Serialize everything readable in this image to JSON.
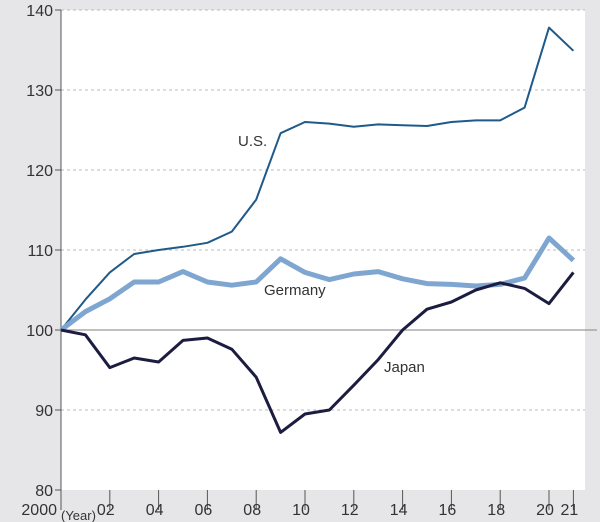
{
  "chart_data": {
    "type": "line",
    "x": [
      2000,
      2001,
      2002,
      2003,
      2004,
      2005,
      2006,
      2007,
      2008,
      2009,
      2010,
      2011,
      2012,
      2013,
      2014,
      2015,
      2016,
      2017,
      2018,
      2019,
      2020,
      2021
    ],
    "x_tick_labels": [
      "2000",
      "02",
      "04",
      "06",
      "08",
      "10",
      "12",
      "14",
      "16",
      "18",
      "20",
      "21"
    ],
    "x_tick_values": [
      2000,
      2002,
      2004,
      2006,
      2008,
      2010,
      2012,
      2014,
      2016,
      2018,
      2020,
      2021
    ],
    "xlabel": "(Year)",
    "ylim": [
      80,
      140
    ],
    "y_ticks": [
      80,
      90,
      100,
      110,
      120,
      130,
      140
    ],
    "grid": true,
    "series": [
      {
        "name": "U.S.",
        "color": "#1f5a8a",
        "values": [
          100,
          103.8,
          107.2,
          109.5,
          110,
          110.4,
          110.9,
          112.3,
          116.3,
          124.6,
          126,
          125.8,
          125.4,
          125.7,
          125.6,
          125.5,
          126,
          126.2,
          126.2,
          127.8,
          137.8,
          134.9
        ]
      },
      {
        "name": "Germany",
        "color": "#7ea6d0",
        "values": [
          100,
          102.3,
          103.9,
          106,
          106,
          107.3,
          106,
          105.6,
          106,
          108.9,
          107.2,
          106.3,
          107,
          107.3,
          106.4,
          105.8,
          105.7,
          105.5,
          105.7,
          106.5,
          111.5,
          108.7
        ]
      },
      {
        "name": "Japan",
        "color": "#1c1c40",
        "values": [
          100,
          99.4,
          95.3,
          96.5,
          96,
          98.7,
          99,
          97.6,
          94.1,
          87.2,
          89.5,
          90,
          93.1,
          96.3,
          100,
          102.6,
          103.5,
          105,
          105.9,
          105.2,
          103.3,
          107.2
        ]
      }
    ]
  }
}
